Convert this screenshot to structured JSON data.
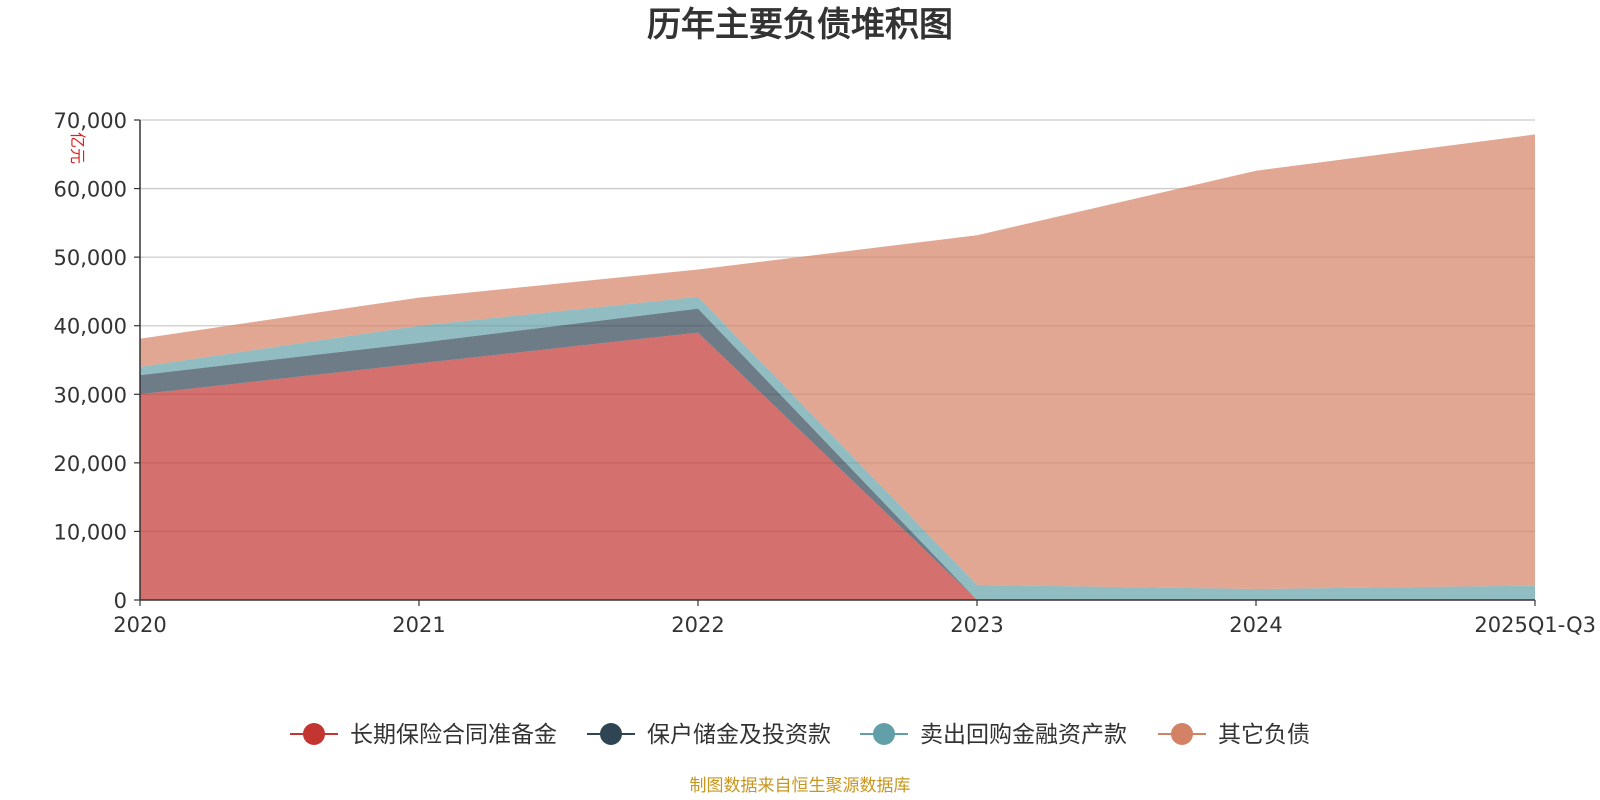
{
  "chart_data": {
    "type": "area",
    "stacked": true,
    "title": "历年主要负债堆积图",
    "unit_label": "亿元",
    "categories": [
      "2020",
      "2021",
      "2022",
      "2023",
      "2024",
      "2025Q1-Q3"
    ],
    "ylim": [
      0,
      70000
    ],
    "yticks": [
      0,
      10000,
      20000,
      30000,
      40000,
      50000,
      60000,
      70000
    ],
    "ytick_labels": [
      "0",
      "10,000",
      "20,000",
      "30,000",
      "40,000",
      "50,000",
      "60,000",
      "70,000"
    ],
    "grid": true,
    "legend_position": "bottom",
    "series": [
      {
        "name": "长期保险合同准备金",
        "values": [
          30000,
          34500,
          39000,
          0,
          0,
          0
        ],
        "color": "#c23531"
      },
      {
        "name": "保户储金及投资款",
        "values": [
          2800,
          3000,
          3500,
          0,
          0,
          0
        ],
        "color": "#2f4554"
      },
      {
        "name": "卖出回购金融资产款",
        "values": [
          1200,
          2500,
          1700,
          2200,
          1600,
          2100
        ],
        "color": "#61a0a8"
      },
      {
        "name": "其它负债",
        "values": [
          4100,
          4100,
          4000,
          51000,
          61000,
          65800
        ],
        "color": "#d48265"
      }
    ],
    "source": "制图数据来自恒生聚源数据库"
  }
}
